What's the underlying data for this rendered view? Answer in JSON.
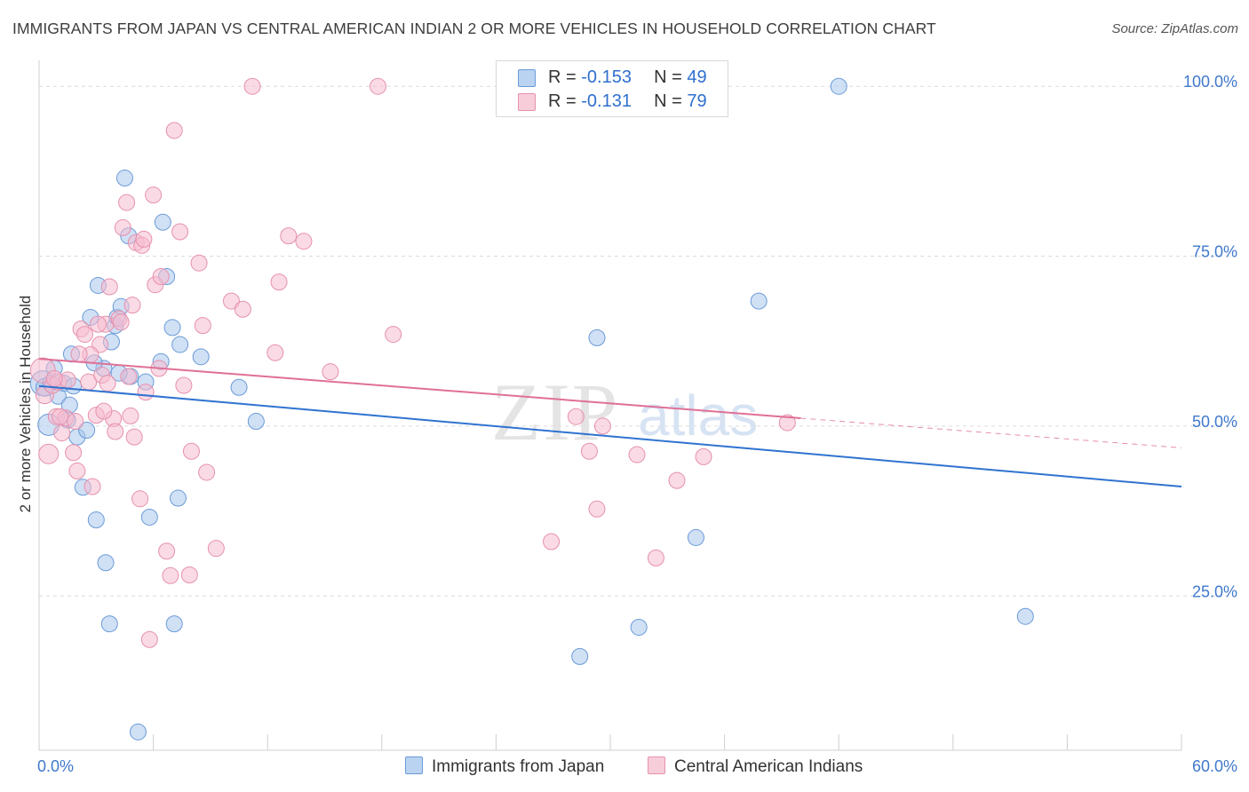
{
  "title": "IMMIGRANTS FROM JAPAN VS CENTRAL AMERICAN INDIAN 2 OR MORE VEHICLES IN HOUSEHOLD CORRELATION CHART",
  "source": "Source: ZipAtlas.com",
  "watermark": {
    "zip": "ZIP",
    "atlas": "atlas"
  },
  "legend": {
    "rows": [
      {
        "r_label": "R = ",
        "r_value": "-0.153",
        "n_label": "N = ",
        "n_value": "49"
      },
      {
        "r_label": "R = ",
        "r_value": " -0.131",
        "n_label": "N = ",
        "n_value": "79"
      }
    ]
  },
  "colors": {
    "blue_fill": "#a9c6ec",
    "blue_stroke": "#6a9bd8",
    "blue_line": "#2f73d0",
    "pink_fill": "#f5bcd0",
    "pink_stroke": "#e591ad",
    "pink_line": "#e07096",
    "grid": "#dcdcdc",
    "tick_text": "#3f78cc"
  },
  "chart_data": {
    "type": "scatter",
    "title": "IMMIGRANTS FROM JAPAN VS CENTRAL AMERICAN INDIAN 2 OR MORE VEHICLES IN HOUSEHOLD CORRELATION CHART",
    "xlabel": "",
    "ylabel": "2 or more Vehicles in Household",
    "xlim": [
      0,
      60
    ],
    "ylim": [
      2.3,
      104.6
    ],
    "x_tick_labels": [
      "0.0%",
      "60.0%"
    ],
    "y_ticks": [
      25,
      50,
      75,
      100
    ],
    "y_tick_labels": [
      "25.0%",
      "50.0%",
      "75.0%",
      "100.0%"
    ],
    "grid": true,
    "legend_position": "bottom",
    "series": [
      {
        "name": "Immigrants from Japan",
        "color": "#a9c6ec",
        "trend": {
          "x": [
            0,
            60
          ],
          "y": [
            55.9,
            41.1
          ],
          "dashed_from": null
        },
        "points": [
          [
            0.2,
            56.3,
            14
          ],
          [
            0.3,
            55.7,
            10
          ],
          [
            0.5,
            50.2,
            12
          ],
          [
            0.6,
            56.3,
            9
          ],
          [
            0.8,
            58.5,
            9
          ],
          [
            1.0,
            54.4,
            9
          ],
          [
            1.3,
            56.3,
            9
          ],
          [
            1.5,
            50.9,
            9
          ],
          [
            1.6,
            53.1,
            9
          ],
          [
            1.7,
            60.6,
            9
          ],
          [
            1.8,
            55.9,
            9
          ],
          [
            2.0,
            48.4,
            9
          ],
          [
            2.3,
            41.0,
            9
          ],
          [
            2.5,
            49.4,
            9
          ],
          [
            2.7,
            66.0,
            9
          ],
          [
            3.0,
            36.2,
            9
          ],
          [
            3.1,
            70.7,
            9
          ],
          [
            3.4,
            58.5,
            9
          ],
          [
            3.5,
            29.9,
            9
          ],
          [
            3.7,
            20.9,
            9
          ],
          [
            3.8,
            62.4,
            9
          ],
          [
            4.0,
            64.8,
            9
          ],
          [
            4.1,
            66.0,
            9
          ],
          [
            4.3,
            67.6,
            9
          ],
          [
            4.5,
            86.5,
            9
          ],
          [
            4.7,
            78.0,
            9
          ],
          [
            4.8,
            57.3,
            9
          ],
          [
            5.2,
            5.0,
            9
          ],
          [
            5.6,
            56.5,
            9
          ],
          [
            5.8,
            36.6,
            9
          ],
          [
            6.4,
            59.5,
            9
          ],
          [
            6.5,
            80.0,
            9
          ],
          [
            6.7,
            72.0,
            9
          ],
          [
            7.0,
            64.5,
            9
          ],
          [
            7.1,
            20.9,
            9
          ],
          [
            7.3,
            39.4,
            9
          ],
          [
            7.4,
            62.0,
            9
          ],
          [
            8.5,
            60.2,
            9
          ],
          [
            10.5,
            55.7,
            9
          ],
          [
            11.4,
            50.7,
            9
          ],
          [
            28.4,
            16.1,
            9
          ],
          [
            29.3,
            63.0,
            9
          ],
          [
            31.5,
            20.4,
            9
          ],
          [
            34.5,
            33.6,
            9
          ],
          [
            37.8,
            68.4,
            9
          ],
          [
            42.0,
            100.0,
            9
          ],
          [
            51.8,
            22.0,
            9
          ],
          [
            4.2,
            57.8,
            9
          ],
          [
            2.9,
            59.3,
            9
          ]
        ]
      },
      {
        "name": "Central American Indians",
        "color": "#f5bcd0",
        "trend": {
          "x": [
            0,
            60
          ],
          "y": [
            59.9,
            46.8
          ],
          "dashed_from": 40
        },
        "points": [
          [
            0.2,
            58.2,
            14
          ],
          [
            0.3,
            54.6,
            10
          ],
          [
            0.5,
            45.9,
            11
          ],
          [
            0.7,
            56.0,
            9
          ],
          [
            0.9,
            51.4,
            9
          ],
          [
            1.0,
            56.5,
            9
          ],
          [
            1.2,
            49.0,
            9
          ],
          [
            1.4,
            51.2,
            9
          ],
          [
            1.5,
            56.8,
            9
          ],
          [
            1.8,
            46.1,
            9
          ],
          [
            2.0,
            43.4,
            9
          ],
          [
            2.2,
            64.3,
            9
          ],
          [
            2.4,
            63.5,
            9
          ],
          [
            2.6,
            56.5,
            9
          ],
          [
            2.8,
            41.1,
            9
          ],
          [
            3.0,
            51.6,
            9
          ],
          [
            3.2,
            62.0,
            9
          ],
          [
            3.3,
            57.5,
            9
          ],
          [
            3.5,
            65.0,
            9
          ],
          [
            3.7,
            70.5,
            9
          ],
          [
            3.9,
            51.1,
            9
          ],
          [
            4.0,
            49.2,
            9
          ],
          [
            4.2,
            65.8,
            9
          ],
          [
            4.4,
            79.2,
            9
          ],
          [
            4.6,
            82.9,
            9
          ],
          [
            4.8,
            51.5,
            9
          ],
          [
            5.0,
            48.4,
            9
          ],
          [
            5.1,
            77.0,
            9
          ],
          [
            5.3,
            39.3,
            9
          ],
          [
            5.6,
            55.0,
            9
          ],
          [
            5.8,
            18.6,
            9
          ],
          [
            6.0,
            84.0,
            9
          ],
          [
            6.1,
            70.8,
            9
          ],
          [
            6.4,
            72.0,
            9
          ],
          [
            6.7,
            31.6,
            9
          ],
          [
            6.9,
            28.0,
            9
          ],
          [
            7.1,
            93.5,
            9
          ],
          [
            7.4,
            78.6,
            9
          ],
          [
            7.6,
            56.0,
            9
          ],
          [
            7.9,
            28.1,
            9
          ],
          [
            8.0,
            46.3,
            9
          ],
          [
            8.4,
            74.0,
            9
          ],
          [
            8.6,
            64.8,
            9
          ],
          [
            8.8,
            43.2,
            9
          ],
          [
            9.3,
            32.0,
            9
          ],
          [
            10.1,
            68.4,
            9
          ],
          [
            10.7,
            67.2,
            9
          ],
          [
            11.2,
            100.0,
            9
          ],
          [
            12.4,
            60.8,
            9
          ],
          [
            12.6,
            71.2,
            9
          ],
          [
            13.1,
            78.0,
            9
          ],
          [
            13.9,
            77.2,
            9
          ],
          [
            15.3,
            58.0,
            9
          ],
          [
            17.8,
            100.0,
            9
          ],
          [
            18.6,
            63.5,
            9
          ],
          [
            26.9,
            33.0,
            9
          ],
          [
            28.2,
            51.4,
            9
          ],
          [
            28.9,
            46.3,
            9
          ],
          [
            29.3,
            37.8,
            9
          ],
          [
            29.6,
            50.0,
            9
          ],
          [
            31.4,
            45.8,
            9
          ],
          [
            32.4,
            30.6,
            9
          ],
          [
            33.5,
            42.0,
            9
          ],
          [
            34.9,
            45.5,
            9
          ],
          [
            39.3,
            50.5,
            9
          ],
          [
            4.9,
            67.8,
            9
          ],
          [
            5.4,
            76.6,
            9
          ],
          [
            3.6,
            56.3,
            9
          ],
          [
            2.7,
            60.5,
            9
          ],
          [
            1.9,
            50.7,
            9
          ],
          [
            6.3,
            58.5,
            9
          ],
          [
            4.3,
            65.3,
            9
          ],
          [
            3.1,
            65.0,
            9
          ],
          [
            1.1,
            51.4,
            9
          ],
          [
            5.5,
            77.5,
            9
          ],
          [
            2.1,
            60.6,
            9
          ],
          [
            4.7,
            57.3,
            9
          ],
          [
            3.4,
            52.2,
            9
          ],
          [
            0.8,
            57.0,
            9
          ]
        ]
      }
    ]
  }
}
